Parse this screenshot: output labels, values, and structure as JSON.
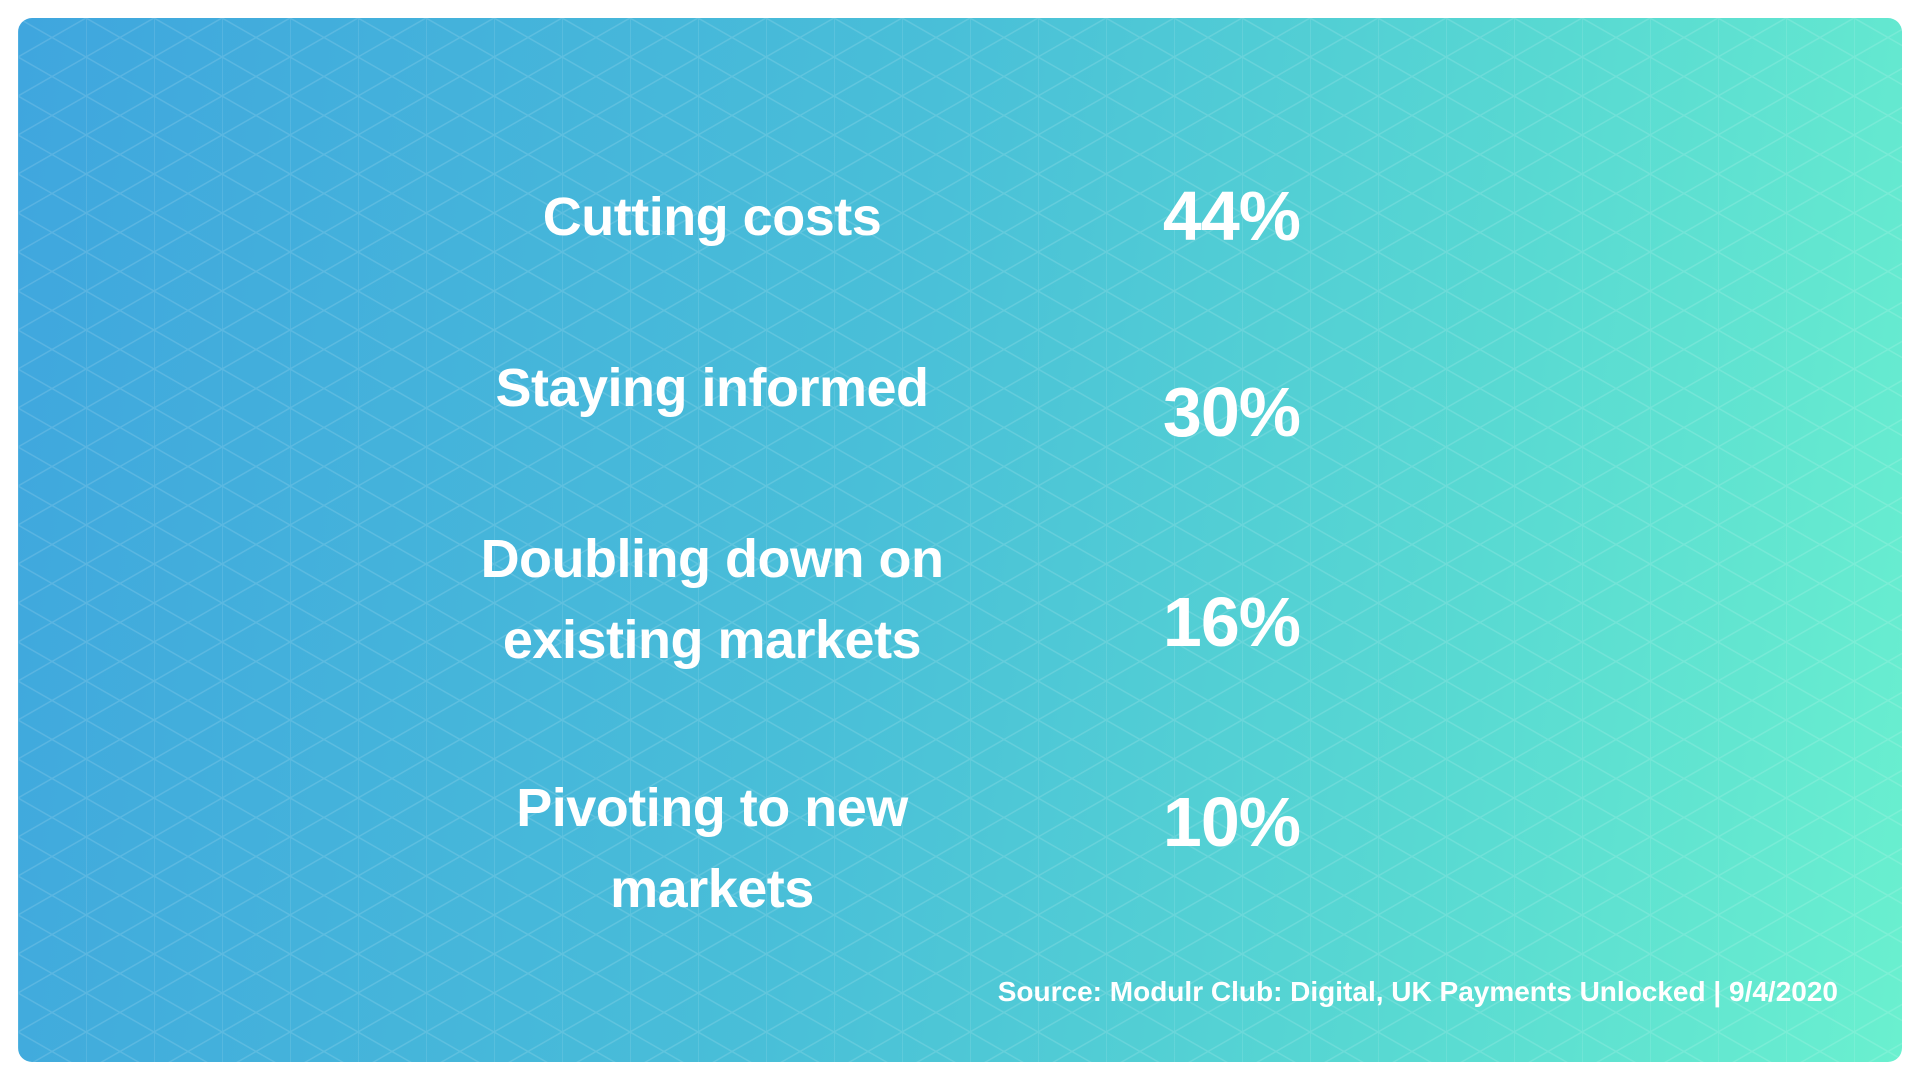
{
  "stats": {
    "rows": [
      {
        "label": "Cutting costs",
        "value": "44%"
      },
      {
        "label": "Staying informed",
        "value": "30%"
      },
      {
        "label": "Doubling down on existing markets",
        "value": "16%"
      },
      {
        "label": "Pivoting to new markets",
        "value": "10%"
      }
    ]
  },
  "source": "Source: Modulr Club: Digital, UK Payments Unlocked | 9/4/2020",
  "colors": {
    "gradient_start": "#3fa6de",
    "gradient_end": "#6af0cf",
    "text": "#ffffff"
  }
}
